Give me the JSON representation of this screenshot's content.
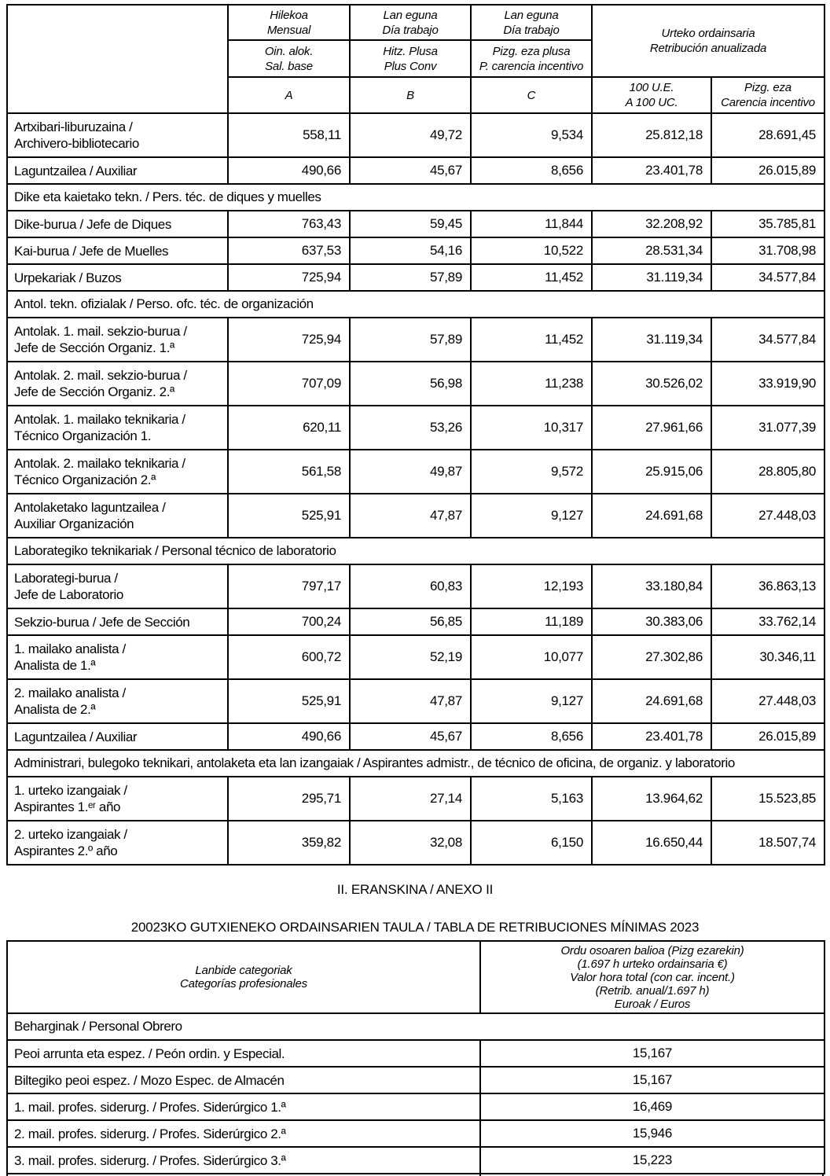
{
  "table1": {
    "header": {
      "monthly": {
        "l1": "Hilekoa",
        "l2": "Mensual"
      },
      "workday_b": {
        "l1": "Lan eguna",
        "l2": "Día trabajo"
      },
      "workday_c": {
        "l1": "Lan eguna",
        "l2": "Día trabajo"
      },
      "base": {
        "l1": "Oin. alok.",
        "l2": "Sal. base"
      },
      "plus": {
        "l1": "Hitz. Plusa",
        "l2": "Plus Conv"
      },
      "carencia": {
        "l1": "Pizg. eza plusa",
        "l2": "P. carencia incentivo"
      },
      "annual": {
        "l1": "Urteko ordainsaria",
        "l2": "Retribución anualizada"
      },
      "col_a": "A",
      "col_b": "B",
      "col_c": "C",
      "ue100": {
        "l1": "100 U.E.",
        "l2": "A 100 UC."
      },
      "pizg_eza": {
        "l1": "Pizg. eza",
        "l2": "Carencia incentivo"
      }
    },
    "rows": [
      {
        "type": "data",
        "label": [
          "Artxibari-liburuzaina /",
          "Archivero-bibliotecario"
        ],
        "values": [
          "558,11",
          "49,72",
          "9,534",
          "25.812,18",
          "28.691,45"
        ]
      },
      {
        "type": "data",
        "label": [
          "Laguntzailea / Auxiliar"
        ],
        "values": [
          "490,66",
          "45,67",
          "8,656",
          "23.401,78",
          "26.015,89"
        ]
      },
      {
        "type": "section",
        "label": [
          "Dike eta kaietako tekn. / Pers. téc. de diques y muelles"
        ]
      },
      {
        "type": "data",
        "label": [
          "Dike-burua / Jefe de Diques"
        ],
        "values": [
          "763,43",
          "59,45",
          "11,844",
          "32.208,92",
          "35.785,81"
        ]
      },
      {
        "type": "data",
        "label": [
          "Kai-burua / Jefe de Muelles"
        ],
        "values": [
          "637,53",
          "54,16",
          "10,522",
          "28.531,34",
          "31.708,98"
        ]
      },
      {
        "type": "data",
        "label": [
          "Urpekariak / Buzos"
        ],
        "values": [
          "725,94",
          "57,89",
          "11,452",
          "31.119,34",
          "34.577,84"
        ]
      },
      {
        "type": "section",
        "label": [
          "Antol. tekn. ofizialak / Perso. ofc. téc. de organización"
        ]
      },
      {
        "type": "data",
        "label": [
          "Antolak. 1. mail. sekzio-burua /",
          "Jefe de Sección Organiz. 1.ª"
        ],
        "values": [
          "725,94",
          "57,89",
          "11,452",
          "31.119,34",
          "34.577,84"
        ]
      },
      {
        "type": "data",
        "label": [
          "Antolak. 2. mail. sekzio-burua /",
          "Jefe de Sección Organiz. 2.ª"
        ],
        "values": [
          "707,09",
          "56,98",
          "11,238",
          "30.526,02",
          "33.919,90"
        ]
      },
      {
        "type": "data",
        "label": [
          "Antolak. 1. mailako teknikaria /",
          "Técnico Organización 1."
        ],
        "values": [
          "620,11",
          "53,26",
          "10,317",
          "27.961,66",
          "31.077,39"
        ]
      },
      {
        "type": "data",
        "label": [
          "Antolak. 2. mailako teknikaria /",
          "Técnico Organización 2.ª"
        ],
        "values": [
          "561,58",
          "49,87",
          "9,572",
          "25.915,06",
          "28.805,80"
        ]
      },
      {
        "type": "data",
        "label": [
          "Antolaketako laguntzailea /",
          "Auxiliar Organización"
        ],
        "values": [
          "525,91",
          "47,87",
          "9,127",
          "24.691,68",
          "27.448,03"
        ]
      },
      {
        "type": "section",
        "label": [
          "Laborategiko teknikariak / Personal técnico de laboratorio"
        ]
      },
      {
        "type": "data",
        "label": [
          "Laborategi-burua /",
          "Jefe de Laboratorio"
        ],
        "values": [
          "797,17",
          "60,83",
          "12,193",
          "33.180,84",
          "36.863,13"
        ]
      },
      {
        "type": "data",
        "label": [
          "Sekzio-burua / Jefe de Sección"
        ],
        "values": [
          "700,24",
          "56,85",
          "11,189",
          "30.383,06",
          "33.762,14"
        ]
      },
      {
        "type": "data",
        "label": [
          "1. mailako analista /",
          "Analista de 1.ª"
        ],
        "values": [
          "600,72",
          "52,19",
          "10,077",
          "27.302,86",
          "30.346,11"
        ]
      },
      {
        "type": "data",
        "label": [
          "2. mailako analista /",
          "Analista de 2.ª"
        ],
        "values": [
          "525,91",
          "47,87",
          "9,127",
          "24.691,68",
          "27.448,03"
        ]
      },
      {
        "type": "data",
        "label": [
          "Laguntzailea / Auxiliar"
        ],
        "values": [
          "490,66",
          "45,67",
          "8,656",
          "23.401,78",
          "26.015,89"
        ]
      },
      {
        "type": "section",
        "label": [
          "Administrari, bulegoko teknikari, antolaketa eta lan izangaiak / Aspirantes admistr., de técnico de oficina, de organiz. y laboratorio"
        ]
      },
      {
        "type": "data",
        "label": [
          "1. urteko izangaiak /",
          "Aspirantes 1.ᵉʳ año"
        ],
        "values": [
          "295,71",
          "27,14",
          "5,163",
          "13.964,62",
          "15.523,85"
        ]
      },
      {
        "type": "data",
        "label": [
          "2. urteko izangaiak /",
          "Aspirantes 2.º año"
        ],
        "values": [
          "359,82",
          "32,08",
          "6,150",
          "16.650,44",
          "18.507,74"
        ]
      }
    ]
  },
  "headings": {
    "annex": "II. ERANSKINA / ANEXO II",
    "table2_title": "20023KO GUTXIENEKO ORDAINSARIEN TAULA / TABLA DE RETRIBUCIONES MÍNIMAS 2023"
  },
  "table2": {
    "header": {
      "left": [
        "Lanbide categoriak",
        "Categorías profesionales"
      ],
      "right": [
        "Ordu osoaren balioa (Pizg ezarekin)",
        "(1.697 h urteko ordainsaria €)",
        "Valor hora total (con car. incent.)",
        "(Retrib. anual/1.697 h)",
        "Euroak / Euros"
      ]
    },
    "rows": [
      {
        "type": "section",
        "label": [
          "Beharginak / Personal Obrero"
        ]
      },
      {
        "type": "data",
        "label": [
          "Peoi arrunta eta espez. / Peón ordin. y Especial."
        ],
        "values": [
          "15,167"
        ]
      },
      {
        "type": "data",
        "label": [
          "Biltegiko peoi espez. / Mozo Espec. de Almacén"
        ],
        "values": [
          "15,167"
        ]
      },
      {
        "type": "data",
        "label": [
          "1. mail. profes. siderurg. / Profes. Siderúrgico 1.ª"
        ],
        "values": [
          "16,469"
        ]
      },
      {
        "type": "data",
        "label": [
          "2. mail. profes. siderurg. / Profes. Siderúrgico 2.ª"
        ],
        "values": [
          "15,946"
        ]
      },
      {
        "type": "data",
        "label": [
          "3. mail. profes. siderurg. / Profes. Siderúrgico 3.ª"
        ],
        "values": [
          "15,223"
        ]
      }
    ]
  }
}
